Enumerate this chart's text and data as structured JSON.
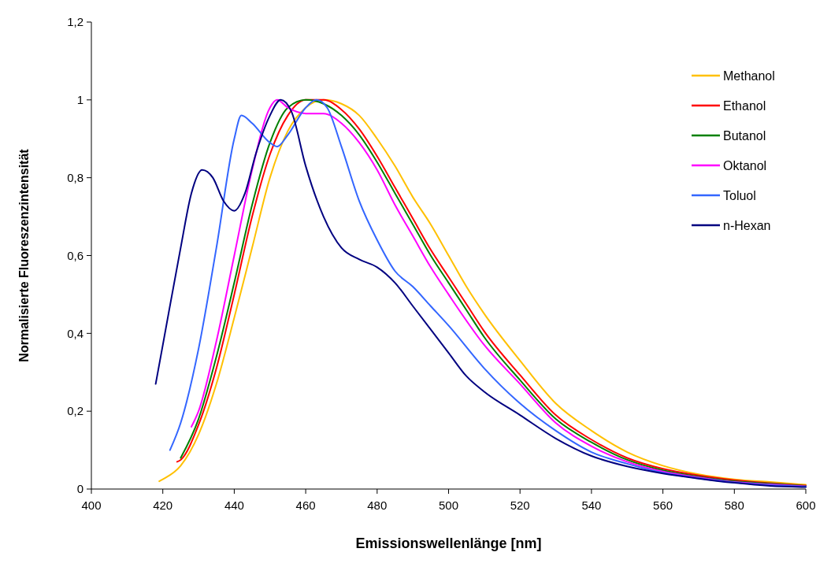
{
  "chart_data": {
    "type": "line",
    "xlabel": "Emissionswellenlänge [nm]",
    "ylabel": "Normalisierte Fluoreszenzintensität",
    "xlim": [
      400,
      600
    ],
    "xticks": [
      400,
      420,
      440,
      460,
      480,
      500,
      520,
      540,
      560,
      580,
      600
    ],
    "ylim": [
      0,
      1.2
    ],
    "yticks": [
      0,
      {
        "value": 0.2,
        "label": "0,2"
      },
      {
        "value": 0.4,
        "label": "0,4"
      },
      {
        "value": 0.6,
        "label": "0,6"
      },
      {
        "value": 0.8,
        "label": "0,8"
      },
      1,
      {
        "value": 1.2,
        "label": "1,2"
      }
    ],
    "grid": false,
    "legend": "top right",
    "marker": "none",
    "line_style": "solid",
    "series": [
      {
        "name": "Methanol",
        "color": "#ffc000",
        "x": [
          419,
          420,
          425,
          430,
          435,
          440,
          445,
          450,
          455,
          460,
          465,
          470,
          475,
          480,
          485,
          490,
          495,
          500,
          505,
          510,
          520,
          530,
          540,
          550,
          560,
          570,
          580,
          590,
          600
        ],
        "values": [
          0.02,
          0.025,
          0.06,
          0.14,
          0.27,
          0.44,
          0.62,
          0.8,
          0.92,
          0.98,
          1,
          0.99,
          0.96,
          0.9,
          0.83,
          0.75,
          0.68,
          0.6,
          0.52,
          0.45,
          0.33,
          0.22,
          0.15,
          0.095,
          0.06,
          0.038,
          0.025,
          0.018,
          0.011
        ]
      },
      {
        "name": "Ethanol",
        "color": "#ff0000",
        "x": [
          424,
          425,
          430,
          435,
          440,
          445,
          450,
          455,
          460,
          465,
          470,
          475,
          480,
          485,
          490,
          495,
          500,
          505,
          510,
          520,
          530,
          540,
          550,
          560,
          570,
          580,
          590,
          600
        ],
        "values": [
          0.07,
          0.075,
          0.165,
          0.31,
          0.5,
          0.7,
          0.86,
          0.96,
          1,
          1,
          0.975,
          0.925,
          0.855,
          0.775,
          0.695,
          0.615,
          0.545,
          0.475,
          0.405,
          0.293,
          0.19,
          0.127,
          0.08,
          0.052,
          0.035,
          0.023,
          0.015,
          0.009
        ]
      },
      {
        "name": "Butanol",
        "color": "#008000",
        "x": [
          425,
          430,
          435,
          440,
          445,
          450,
          455,
          460,
          465,
          470,
          475,
          480,
          485,
          490,
          495,
          500,
          505,
          510,
          520,
          530,
          540,
          550,
          560,
          570,
          580,
          590,
          600
        ],
        "values": [
          0.08,
          0.18,
          0.34,
          0.53,
          0.73,
          0.89,
          0.98,
          1,
          0.99,
          0.96,
          0.91,
          0.84,
          0.76,
          0.68,
          0.6,
          0.53,
          0.46,
          0.39,
          0.28,
          0.18,
          0.12,
          0.075,
          0.048,
          0.032,
          0.02,
          0.014,
          0.008
        ]
      },
      {
        "name": "Oktanol",
        "color": "#ff00ff",
        "x": [
          428,
          430,
          435,
          440,
          445,
          450,
          452,
          455,
          460,
          465,
          470,
          475,
          480,
          485,
          490,
          495,
          500,
          510,
          520,
          530,
          540,
          550,
          560,
          570,
          580,
          590,
          600
        ],
        "values": [
          0.16,
          0.2,
          0.38,
          0.6,
          0.82,
          0.98,
          1,
          0.98,
          0.965,
          0.965,
          0.94,
          0.89,
          0.82,
          0.73,
          0.65,
          0.57,
          0.5,
          0.37,
          0.27,
          0.17,
          0.11,
          0.07,
          0.045,
          0.03,
          0.018,
          0.012,
          0.007
        ]
      },
      {
        "name": "Toluol",
        "color": "#3366ff",
        "x": [
          422,
          425,
          430,
          435,
          440,
          442,
          445,
          450,
          452,
          455,
          460,
          463,
          466,
          470,
          475,
          480,
          485,
          490,
          495,
          500,
          510,
          520,
          530,
          540,
          550,
          560,
          570,
          580,
          590,
          600
        ],
        "values": [
          0.1,
          0.17,
          0.36,
          0.62,
          0.9,
          0.96,
          0.94,
          0.89,
          0.88,
          0.91,
          0.98,
          1,
          0.98,
          0.88,
          0.74,
          0.64,
          0.56,
          0.52,
          0.47,
          0.42,
          0.31,
          0.22,
          0.15,
          0.095,
          0.065,
          0.042,
          0.028,
          0.017,
          0.01,
          0.006
        ]
      },
      {
        "name": "n-Hexan",
        "color": "#000080",
        "x": [
          418,
          420,
          425,
          428,
          431,
          434,
          437,
          440,
          443,
          446,
          450,
          453,
          456,
          460,
          465,
          470,
          475,
          480,
          485,
          490,
          495,
          500,
          505,
          510,
          520,
          530,
          540,
          550,
          560,
          570,
          580,
          590,
          600
        ],
        "values": [
          0.27,
          0.37,
          0.62,
          0.76,
          0.82,
          0.8,
          0.74,
          0.715,
          0.76,
          0.86,
          0.96,
          1,
          0.97,
          0.83,
          0.7,
          0.62,
          0.59,
          0.57,
          0.53,
          0.47,
          0.41,
          0.35,
          0.29,
          0.25,
          0.19,
          0.13,
          0.085,
          0.058,
          0.04,
          0.027,
          0.016,
          0.008,
          0.005
        ]
      }
    ]
  }
}
